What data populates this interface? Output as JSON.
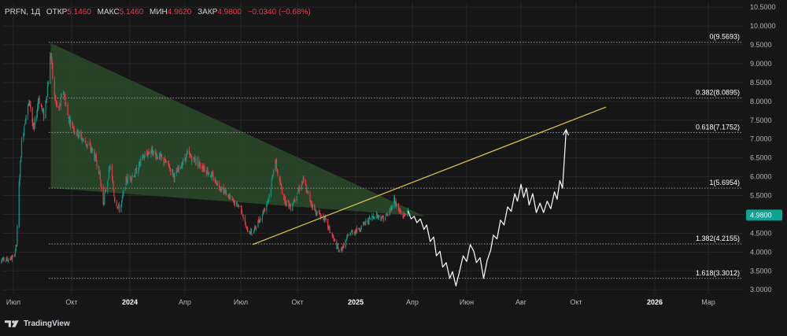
{
  "header": {
    "symbol": "PRFN, 1Д",
    "open_label": "ОТКР",
    "open_value": "5.1460",
    "high_label": "МАКС",
    "high_value": "5.1460",
    "low_label": "МИН",
    "low_value": "4.9620",
    "close_label": "ЗАКР",
    "close_value": "4.9800",
    "change": "−0.0340 (−0.68%)"
  },
  "branding": {
    "name": "TradingView",
    "icon": "tradingview-logo-icon"
  },
  "colors": {
    "background": "#161616",
    "grid": "#262626",
    "candle_up": "#089981",
    "candle_down": "#f23645",
    "triangle_fill": "#2a4a2a",
    "trendline": "#e6c84a",
    "projection": "#ffffff",
    "level_line": "#9a9a9a",
    "axis_text": "#b2b5be",
    "price_label_bg": "#0aa394"
  },
  "chart_data": {
    "type": "candlestick",
    "symbol": "PRFN",
    "timeframe": "1Д",
    "x_ticks": [
      {
        "date": "2023-07-01",
        "label": "Июл",
        "bold": false
      },
      {
        "date": "2023-10-01",
        "label": "Окт",
        "bold": false
      },
      {
        "date": "2024-01-01",
        "label": "2024",
        "bold": true
      },
      {
        "date": "2024-04-01",
        "label": "Апр",
        "bold": false
      },
      {
        "date": "2024-07-01",
        "label": "Июл",
        "bold": false
      },
      {
        "date": "2024-10-01",
        "label": "Окт",
        "bold": false
      },
      {
        "date": "2025-01-01",
        "label": "2025",
        "bold": true
      },
      {
        "date": "2025-04-01",
        "label": "Апр",
        "bold": false
      },
      {
        "date": "2025-06-01",
        "label": "Июн",
        "bold": false
      },
      {
        "date": "2025-08-01",
        "label": "Авг",
        "bold": false
      },
      {
        "date": "2025-10-01",
        "label": "Окт",
        "bold": false
      },
      {
        "date": "2026-01-01",
        "label": "2026",
        "bold": true
      },
      {
        "date": "2026-03-01",
        "label": "Мар",
        "bold": false
      }
    ],
    "y_ticks": [
      "10.5000",
      "10.0000",
      "9.5000",
      "9.0000",
      "8.5000",
      "8.0000",
      "7.5000",
      "7.0000",
      "6.5000",
      "6.0000",
      "5.5000",
      "5.0000",
      "4.5000",
      "4.0000",
      "3.5000",
      "3.0000"
    ],
    "y_range": [
      2.9,
      10.65
    ],
    "last_price": "4.9800",
    "fib_levels": [
      {
        "label": "0(9.5693)",
        "value": 9.5693
      },
      {
        "label": "0.382(8.0895)",
        "value": 8.0895
      },
      {
        "label": "0.618(7.1752)",
        "value": 7.1752
      },
      {
        "label": "1(5.6954)",
        "value": 5.6954
      },
      {
        "label": "1.382(4.2155)",
        "value": 4.2155
      },
      {
        "label": "1.618(3.3012)",
        "value": 3.3012
      }
    ],
    "price_path": [
      [
        "2023-06-05",
        3.8
      ],
      [
        "2023-06-20",
        3.8
      ],
      [
        "2023-07-01",
        3.85
      ],
      [
        "2023-07-06",
        4.2
      ],
      [
        "2023-07-09",
        5.5
      ],
      [
        "2023-07-14",
        6.9
      ],
      [
        "2023-07-20",
        7.6
      ],
      [
        "2023-07-27",
        8.0
      ],
      [
        "2023-08-02",
        7.2
      ],
      [
        "2023-08-10",
        8.1
      ],
      [
        "2023-08-18",
        7.6
      ],
      [
        "2023-08-24",
        8.4
      ],
      [
        "2023-08-29",
        9.3
      ],
      [
        "2023-09-03",
        8.2
      ],
      [
        "2023-09-10",
        7.7
      ],
      [
        "2023-09-18",
        8.3
      ],
      [
        "2023-09-25",
        7.6
      ],
      [
        "2023-10-04",
        7.3
      ],
      [
        "2023-10-18",
        7.0
      ],
      [
        "2023-11-02",
        6.7
      ],
      [
        "2023-11-12",
        6.3
      ],
      [
        "2023-11-20",
        5.3
      ],
      [
        "2023-12-01",
        6.3
      ],
      [
        "2023-12-08",
        5.4
      ],
      [
        "2023-12-16",
        5.1
      ],
      [
        "2023-12-26",
        5.9
      ],
      [
        "2024-01-10",
        6.1
      ],
      [
        "2024-01-22",
        6.5
      ],
      [
        "2024-02-05",
        6.7
      ],
      [
        "2024-02-20",
        6.5
      ],
      [
        "2024-03-05",
        6.3
      ],
      [
        "2024-03-15",
        6.0
      ],
      [
        "2024-03-25",
        6.3
      ],
      [
        "2024-04-05",
        6.6
      ],
      [
        "2024-04-20",
        6.4
      ],
      [
        "2024-05-05",
        6.2
      ],
      [
        "2024-05-20",
        5.9
      ],
      [
        "2024-06-05",
        5.6
      ],
      [
        "2024-06-20",
        5.3
      ],
      [
        "2024-07-01",
        5.2
      ],
      [
        "2024-07-10",
        4.6
      ],
      [
        "2024-07-20",
        4.5
      ],
      [
        "2024-08-01",
        4.9
      ],
      [
        "2024-08-10",
        5.2
      ],
      [
        "2024-08-18",
        5.6
      ],
      [
        "2024-08-25",
        6.5
      ],
      [
        "2024-09-01",
        5.9
      ],
      [
        "2024-09-10",
        5.4
      ],
      [
        "2024-09-20",
        5.2
      ],
      [
        "2024-10-01",
        5.6
      ],
      [
        "2024-10-10",
        5.9
      ],
      [
        "2024-10-18",
        5.5
      ],
      [
        "2024-10-28",
        5.1
      ],
      [
        "2024-11-05",
        5.0
      ],
      [
        "2024-11-12",
        4.9
      ],
      [
        "2024-11-20",
        4.6
      ],
      [
        "2024-11-28",
        4.3
      ],
      [
        "2024-12-06",
        4.0
      ],
      [
        "2024-12-14",
        4.2
      ],
      [
        "2024-12-22",
        4.5
      ],
      [
        "2025-01-05",
        4.6
      ],
      [
        "2025-01-18",
        4.8
      ],
      [
        "2025-02-01",
        5.0
      ],
      [
        "2025-02-12",
        4.9
      ],
      [
        "2025-02-22",
        5.0
      ],
      [
        "2025-03-03",
        5.4
      ],
      [
        "2025-03-10",
        5.1
      ],
      [
        "2025-03-18",
        4.95
      ],
      [
        "2025-03-25",
        5.1
      ]
    ],
    "triangle": [
      [
        "2023-08-29",
        9.55
      ],
      [
        "2023-08-29",
        5.7
      ],
      [
        "2025-04-15",
        4.95
      ]
    ],
    "trendline": [
      [
        "2024-07-20",
        4.2
      ],
      [
        "2025-11-05",
        7.85
      ]
    ],
    "projection_path": [
      [
        "2025-03-25",
        5.1
      ],
      [
        "2025-03-30",
        4.88
      ],
      [
        "2025-04-03",
        4.95
      ],
      [
        "2025-04-06",
        4.78
      ],
      [
        "2025-04-10",
        4.88
      ],
      [
        "2025-04-14",
        4.6
      ],
      [
        "2025-04-17",
        4.72
      ],
      [
        "2025-04-21",
        4.28
      ],
      [
        "2025-04-25",
        4.4
      ],
      [
        "2025-04-28",
        3.9
      ],
      [
        "2025-05-02",
        4.02
      ],
      [
        "2025-05-05",
        3.6
      ],
      [
        "2025-05-09",
        3.72
      ],
      [
        "2025-05-13",
        3.3
      ],
      [
        "2025-05-16",
        3.48
      ],
      [
        "2025-05-20",
        3.1
      ],
      [
        "2025-05-24",
        3.5
      ],
      [
        "2025-05-28",
        3.9
      ],
      [
        "2025-06-01",
        3.75
      ],
      [
        "2025-06-05",
        4.2
      ],
      [
        "2025-06-09",
        4.02
      ],
      [
        "2025-06-12",
        3.72
      ],
      [
        "2025-06-16",
        3.85
      ],
      [
        "2025-06-20",
        3.3
      ],
      [
        "2025-06-24",
        3.78
      ],
      [
        "2025-06-28",
        4.05
      ],
      [
        "2025-07-01",
        4.45
      ],
      [
        "2025-07-05",
        4.35
      ],
      [
        "2025-07-09",
        4.85
      ],
      [
        "2025-07-13",
        4.72
      ],
      [
        "2025-07-17",
        5.2
      ],
      [
        "2025-07-21",
        5.08
      ],
      [
        "2025-07-25",
        5.55
      ],
      [
        "2025-07-28",
        5.35
      ],
      [
        "2025-08-01",
        5.8
      ],
      [
        "2025-08-04",
        5.45
      ],
      [
        "2025-08-07",
        5.7
      ],
      [
        "2025-08-10",
        5.25
      ],
      [
        "2025-08-14",
        5.55
      ],
      [
        "2025-08-18",
        5.05
      ],
      [
        "2025-08-22",
        5.3
      ],
      [
        "2025-08-26",
        5.05
      ],
      [
        "2025-08-30",
        5.35
      ],
      [
        "2025-09-03",
        5.15
      ],
      [
        "2025-09-07",
        5.6
      ],
      [
        "2025-09-10",
        5.4
      ],
      [
        "2025-09-13",
        5.9
      ],
      [
        "2025-09-16",
        5.7
      ],
      [
        "2025-09-20",
        7.25
      ]
    ]
  }
}
